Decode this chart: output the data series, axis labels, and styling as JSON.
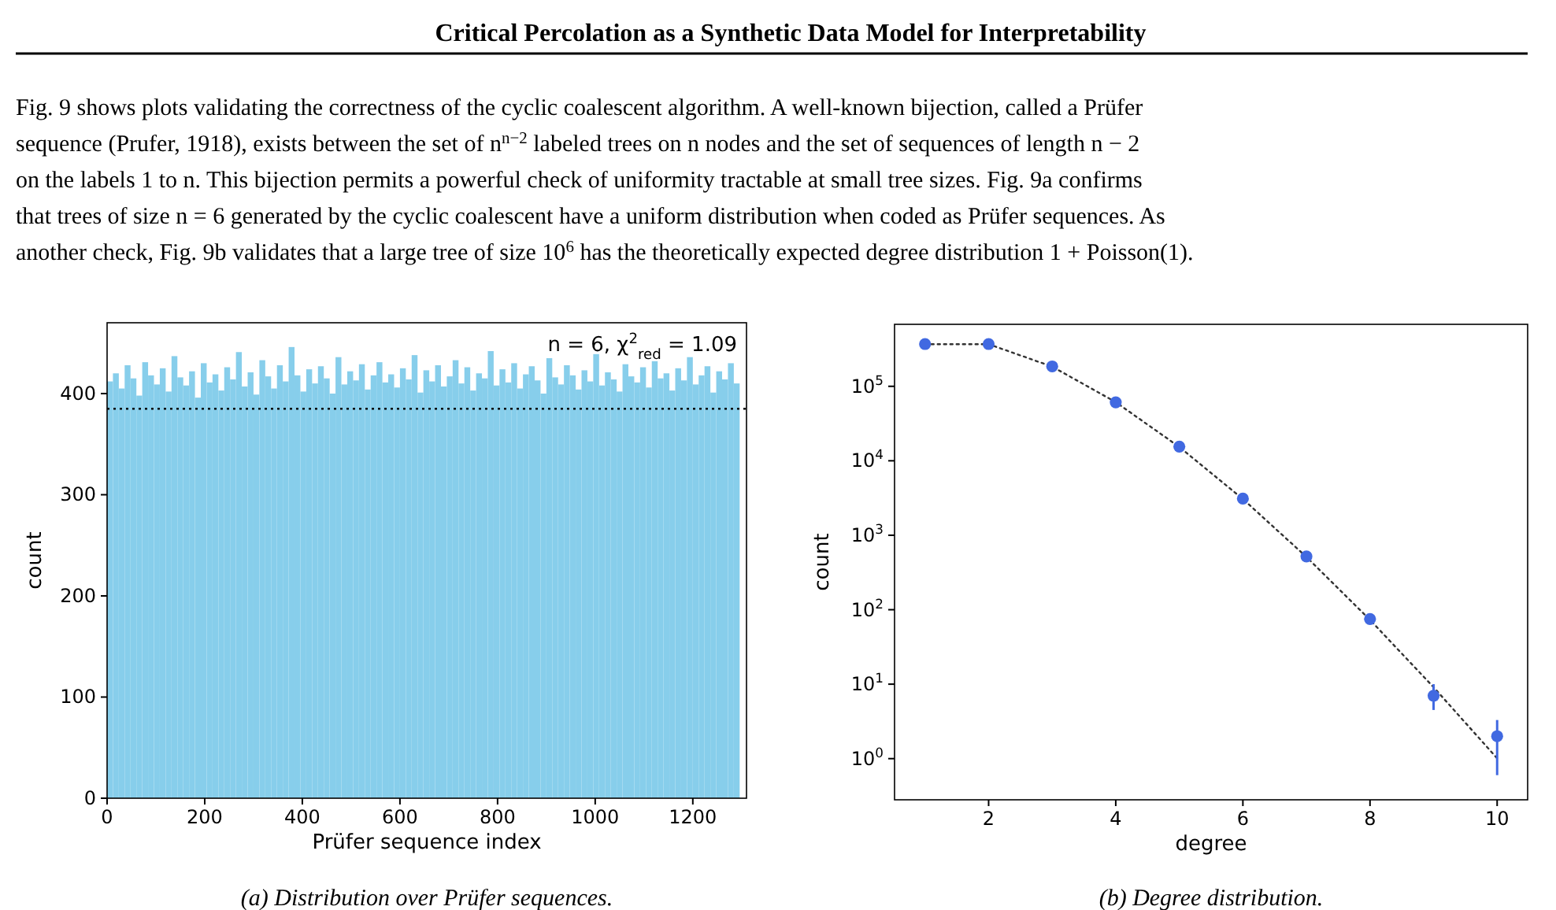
{
  "chart_data": [
    {
      "type": "other",
      "title": "Critical Percolation as a Synthetic Data Model for Interpretability",
      "annotations": [
        "Fig. 9 shows plots validating the correctness of the cyclic coalescent algorithm. A well-known bijection, called a Prüfer",
        "sequence (Prufer, 1918), exists between the set of n$^{n−2}$ labeled trees on n nodes and the set of sequences of length n − 2",
        "on the labels 1 to n. This bijection permits a powerful check of uniformity tractable at small tree sizes. Fig. 9a confirms",
        "that trees of size n = 6 generated by the cyclic coalescent have a uniform distribution when coded as Prüfer sequences. As",
        "another check, Fig. 9b validates that a large tree of size 10$^{6}$ has the theoretically expected degree distribution 1 + Poisson(1)."
      ]
    },
    {
      "type": "histogram",
      "xlabel": "Prüfer sequence index",
      "ylabel": "count",
      "color": "#87ceeb",
      "xlim": [
        0,
        1310
      ],
      "xticks": [
        0,
        200,
        400,
        600,
        800,
        1000,
        1200
      ],
      "ylim": [
        0,
        470
      ],
      "yticks": [
        0,
        100,
        200,
        300,
        400
      ],
      "bins": [
        0,
        12,
        24,
        36,
        48,
        60,
        72,
        84,
        96,
        108,
        120,
        132,
        144,
        156,
        168,
        180,
        192,
        204,
        216,
        228,
        240,
        252,
        264,
        276,
        288,
        300,
        312,
        324,
        336,
        348,
        360,
        372,
        384,
        396,
        408,
        420,
        432,
        444,
        456,
        468,
        480,
        492,
        504,
        516,
        528,
        540,
        552,
        564,
        576,
        588,
        600,
        612,
        624,
        636,
        648,
        660,
        672,
        684,
        696,
        708,
        720,
        732,
        744,
        756,
        768,
        780,
        792,
        804,
        816,
        828,
        840,
        852,
        864,
        876,
        888,
        900,
        912,
        924,
        936,
        948,
        960,
        972,
        984,
        996,
        1008,
        1020,
        1032,
        1044,
        1056,
        1068,
        1080,
        1092,
        1104,
        1116,
        1128,
        1140,
        1152,
        1164,
        1176,
        1188,
        1200,
        1212,
        1224,
        1236,
        1248,
        1260,
        1272,
        1284,
        1296
      ],
      "values": [
        412,
        420,
        405,
        428,
        415,
        398,
        431,
        418,
        409,
        425,
        402,
        437,
        416,
        408,
        422,
        396,
        430,
        411,
        419,
        403,
        426,
        414,
        441,
        407,
        421,
        399,
        433,
        417,
        405,
        428,
        412,
        446,
        418,
        402,
        424,
        410,
        427,
        415,
        400,
        436,
        409,
        422,
        413,
        429,
        404,
        418,
        431,
        411,
        419,
        406,
        425,
        414,
        438,
        401,
        423,
        412,
        428,
        407,
        417,
        433,
        410,
        426,
        403,
        420,
        415,
        442,
        408,
        424,
        411,
        430,
        405,
        419,
        427,
        413,
        400,
        435,
        416,
        409,
        428,
        418,
        404,
        423,
        412,
        439,
        408,
        421,
        414,
        402,
        429,
        417,
        411,
        426,
        406,
        432,
        415,
        420,
        403,
        425,
        413,
        436,
        409,
        418,
        427,
        401,
        422,
        414,
        430,
        410
      ],
      "ref_lines": [
        {
          "axis": "y",
          "value": 385,
          "color": "#000000",
          "line_style": "dotted"
        }
      ],
      "annotations": [
        "n = 6,  χ$^{2}$$_{red}$ = 1.09",
        "(a) Distribution over Prüfer sequences."
      ]
    },
    {
      "type": "scatter",
      "xlabel": "degree",
      "ylabel": "count",
      "log": "y",
      "xlim": [
        0.52,
        10.48
      ],
      "xticks": [
        2,
        4,
        6,
        8,
        10
      ],
      "ylim": [
        0.28,
        680000
      ],
      "yticks": [
        {
          "value": 1,
          "label": "10$^{0}$"
        },
        {
          "value": 10,
          "label": "10$^{1}$"
        },
        {
          "value": 100,
          "label": "10$^{2}$"
        },
        {
          "value": 1000,
          "label": "10$^{3}$"
        },
        {
          "value": 10000,
          "label": "10$^{4}$"
        },
        {
          "value": 100000,
          "label": "10$^{5}$"
        }
      ],
      "series": [
        {
          "type": "line",
          "color": "#333333",
          "line_style": "dotted",
          "x": [
            1,
            2,
            3,
            4,
            5,
            6,
            7,
            8,
            9,
            10
          ],
          "values": [
            367879,
            367879,
            183940,
            61313,
            15328,
            3066,
            511,
            73,
            9.1,
            1.01
          ]
        },
        {
          "type": "scatter",
          "color": "#4169e1",
          "marker": "circle",
          "x": [
            1,
            2,
            3,
            4,
            5,
            6,
            7,
            8,
            9,
            10
          ],
          "values": [
            370000,
            370000,
            185000,
            61000,
            15500,
            3100,
            520,
            75,
            7,
            2
          ],
          "errors": [
            null,
            null,
            null,
            null,
            null,
            null,
            null,
            null,
            [
              4.5,
              10
            ],
            [
              0.6,
              3.3
            ]
          ]
        }
      ],
      "annotations": [
        "(b) Degree distribution."
      ]
    }
  ]
}
